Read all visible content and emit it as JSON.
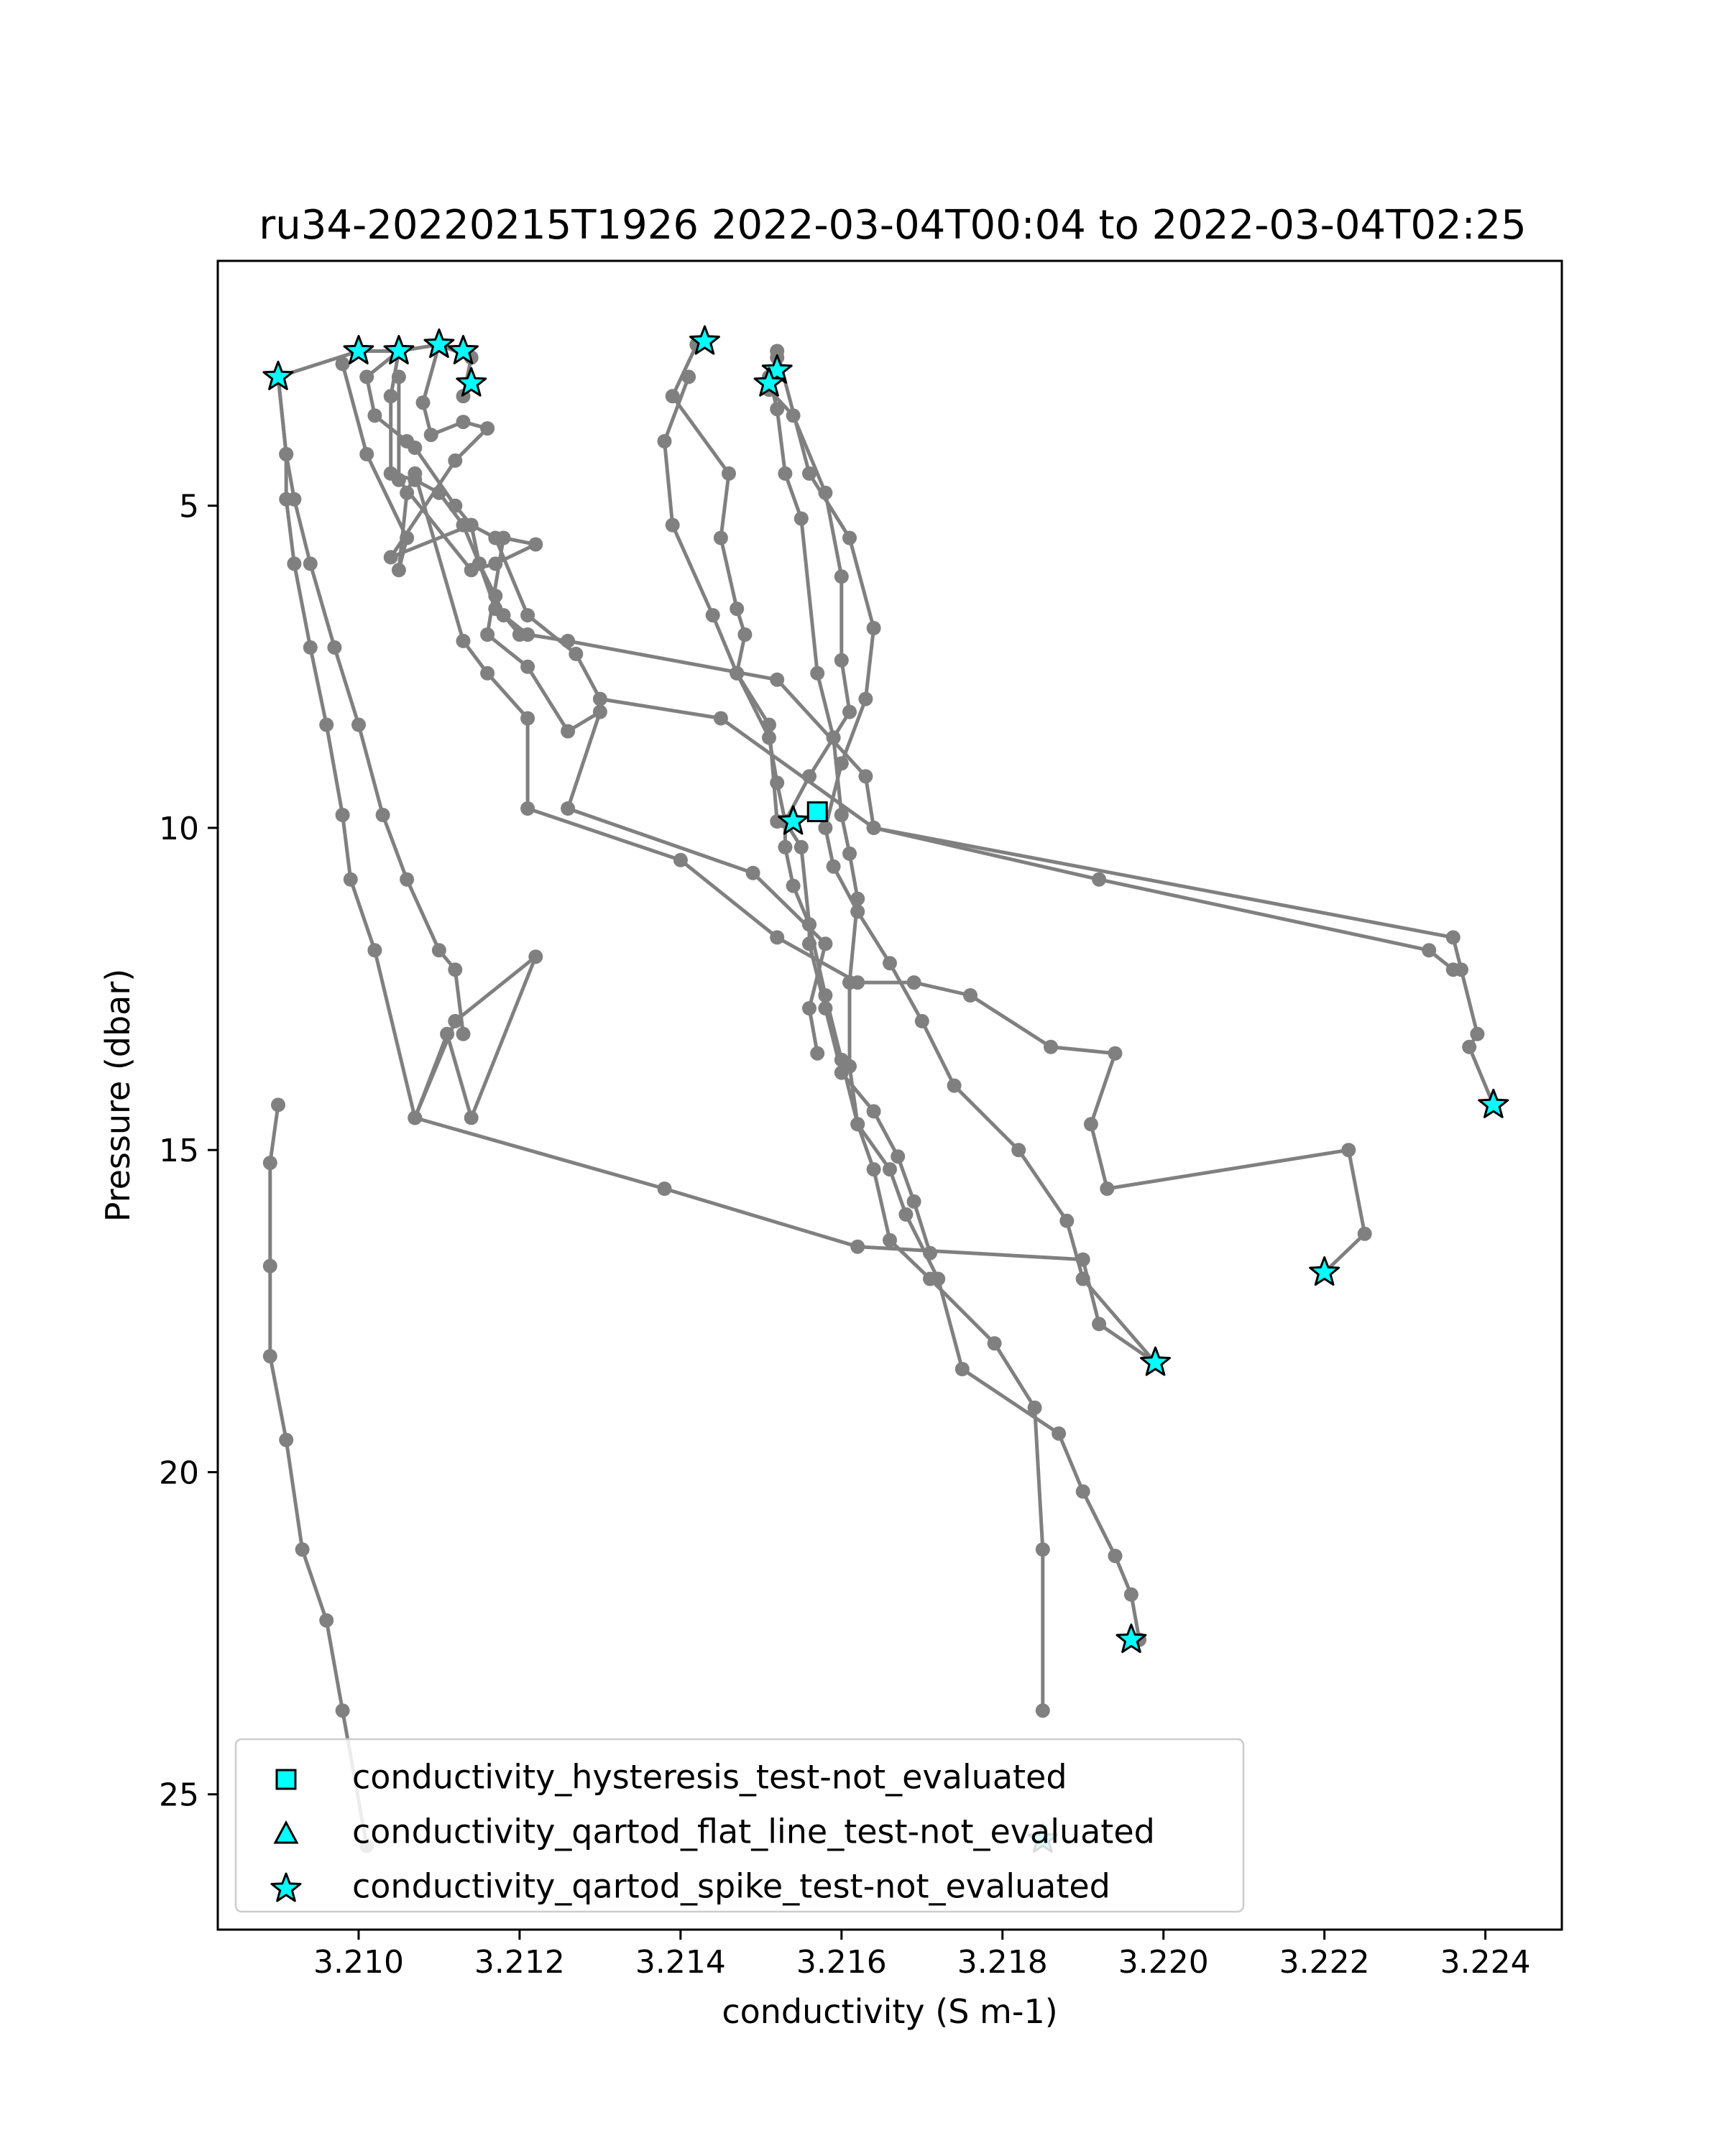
{
  "chart_data": {
    "type": "scatter",
    "title": "ru34-20220215T1926 2022-03-04T00:04 to 2022-03-04T02:25",
    "xlabel": "conductivity (S m-1)",
    "ylabel": "Pressure (dbar)",
    "xlim": [
      3.20825,
      3.22495
    ],
    "ylim": [
      27.1,
      1.2
    ],
    "y_inverted": true,
    "grid": false,
    "legend_position": "lower-left",
    "xticks": [
      3.21,
      3.212,
      3.214,
      3.216,
      3.218,
      3.22,
      3.222,
      3.224
    ],
    "xtick_labels": [
      "3.210",
      "3.212",
      "3.214",
      "3.216",
      "3.218",
      "3.220",
      "3.222",
      "3.224"
    ],
    "yticks": [
      5,
      10,
      15,
      20,
      25
    ],
    "ytick_labels": [
      "5",
      "10",
      "15",
      "20",
      "25"
    ],
    "line_color": "#808080",
    "marker_color": "#00ffff",
    "series": [
      {
        "x": [
          3.2101,
          3.2098,
          3.2096,
          3.2093,
          3.2091,
          3.2089,
          3.2089,
          3.2089,
          3.209
        ],
        "y": [
          25.8,
          23.7,
          22.3,
          21.2,
          19.5,
          18.2,
          16.8,
          15.2,
          14.3
        ]
      },
      {
        "x": [
          3.209,
          3.2091,
          3.2092,
          3.2094,
          3.2097,
          3.21,
          3.2103,
          3.2106,
          3.211,
          3.2112,
          3.2113
        ],
        "y": [
          3.0,
          4.2,
          4.9,
          5.9,
          7.2,
          8.4,
          9.8,
          10.8,
          11.9,
          12.2,
          13.2
        ]
      },
      {
        "x": [
          3.209,
          3.2091,
          3.2091,
          3.2092,
          3.2094,
          3.2096,
          3.2098,
          3.2099,
          3.2102,
          3.2107,
          3.2111,
          3.2114,
          3.2122,
          3.2112,
          3.2107,
          3.2138,
          3.2162,
          3.219,
          3.2192,
          3.2199
        ],
        "y": [
          3.0,
          4.2,
          4.9,
          5.9,
          7.2,
          8.4,
          9.8,
          10.8,
          11.9,
          14.5,
          13.2,
          14.5,
          12.0,
          13.0,
          14.5,
          15.6,
          16.5,
          16.7,
          17.7,
          18.3
        ]
      },
      {
        "x": [
          3.209,
          3.21,
          3.2105,
          3.211,
          3.2114,
          3.2113
        ],
        "y": [
          3.0,
          2.6,
          2.6,
          2.5,
          2.7,
          3.3
        ]
      },
      {
        "x": [
          3.2098,
          3.2101,
          3.2106,
          3.2105,
          3.2106,
          3.2107,
          3.2113,
          3.2116,
          3.2121,
          3.2121,
          3.214,
          3.2152,
          3.2162,
          3.2169,
          3.2176,
          3.2186,
          3.2194,
          3.2191,
          3.2193,
          3.2223,
          3.2225,
          3.222
        ],
        "y": [
          2.8,
          4.2,
          5.5,
          6.0,
          4.8,
          4.5,
          7.1,
          7.6,
          8.3,
          9.7,
          10.5,
          11.7,
          12.4,
          12.4,
          12.6,
          13.4,
          13.5,
          14.6,
          15.6,
          15.0,
          16.3,
          16.9
        ]
      },
      {
        "x": [
          3.2105,
          3.2105,
          3.2114,
          3.2117,
          3.2122,
          3.2118,
          3.2116,
          3.2121,
          3.2126,
          3.213,
          3.2126,
          3.2149,
          3.2158,
          3.2156,
          3.2157
        ],
        "y": [
          3.0,
          4.6,
          6.0,
          5.9,
          5.6,
          5.5,
          7.0,
          7.5,
          8.5,
          8.2,
          9.7,
          10.7,
          11.8,
          12.8,
          13.5
        ]
      },
      {
        "x": [
          3.2105,
          3.2104,
          3.2104,
          3.2107,
          3.211,
          3.2113,
          3.2115,
          3.2117,
          3.2121,
          3.2126,
          3.2152,
          3.2163,
          3.2164,
          3.2236,
          3.2237,
          3.2239,
          3.2238,
          3.2241
        ],
        "y": [
          2.6,
          3.3,
          4.5,
          4.6,
          4.8,
          5.3,
          5.9,
          6.6,
          7.0,
          7.1,
          7.7,
          9.2,
          10.0,
          11.7,
          12.2,
          13.2,
          13.4,
          14.3
        ]
      },
      {
        "x": [
          3.2105,
          3.2101,
          3.2102,
          3.2106,
          3.2107,
          3.2112,
          3.2114,
          3.2115,
          3.2117,
          3.2118,
          3.212
        ],
        "y": [
          2.6,
          3.0,
          3.6,
          4.0,
          4.1,
          5.0,
          5.3,
          5.9,
          6.4,
          6.7,
          7.0
        ]
      },
      {
        "x": [
          3.211,
          3.2108,
          3.2109,
          3.2113,
          3.2116,
          3.2112,
          3.2104,
          3.2114,
          3.2117,
          3.2121,
          3.2127,
          3.213,
          3.2145,
          3.2164,
          3.2192,
          3.2233,
          3.2236
        ],
        "y": [
          2.5,
          3.4,
          3.9,
          3.7,
          3.8,
          4.3,
          5.8,
          5.3,
          5.5,
          6.7,
          7.3,
          8.0,
          8.3,
          10.0,
          10.8,
          11.9,
          12.2
        ]
      },
      {
        "x": [
          3.2142,
          3.2139,
          3.2146,
          3.2145,
          3.2147,
          3.2148,
          3.2147,
          3.2151,
          3.2152,
          3.2153,
          3.2155,
          3.2156,
          3.2158,
          3.216,
          3.2162,
          3.2164,
          3.2166,
          3.2171,
          3.2179,
          3.2184,
          3.2185,
          3.2185
        ],
        "y": [
          2.5,
          3.3,
          4.5,
          5.5,
          6.6,
          7.0,
          7.6,
          8.6,
          9.3,
          9.9,
          10.3,
          11.5,
          12.6,
          13.6,
          14.6,
          15.3,
          16.4,
          17.0,
          18.0,
          19.0,
          21.2,
          23.7
        ]
      },
      {
        "x": [
          3.2151,
          3.2152,
          3.2153,
          3.2155,
          3.2157,
          3.2159,
          3.216,
          3.2161,
          3.2162,
          3.2161,
          3.2161,
          3.2162,
          3.2166,
          3.2168,
          3.2172,
          3.2175,
          3.2187,
          3.219,
          3.2194,
          3.2196,
          3.2197
        ],
        "y": [
          3.0,
          3.5,
          4.5,
          5.2,
          7.6,
          8.6,
          9.8,
          10.4,
          11.1,
          12.4,
          13.7,
          14.6,
          15.3,
          16.0,
          17.0,
          18.4,
          19.4,
          20.3,
          21.3,
          21.9,
          22.6
        ]
      },
      {
        "x": [
          3.2152,
          3.2151,
          3.2154,
          3.2158,
          3.216,
          3.216,
          3.2161,
          3.2159,
          3.2156,
          3.2153,
          3.2153,
          3.2154,
          3.2156,
          3.2156,
          3.2158,
          3.216,
          3.2164,
          3.2167,
          3.2169,
          3.2171
        ],
        "y": [
          2.7,
          3.2,
          3.6,
          4.8,
          6.1,
          7.4,
          8.2,
          8.6,
          9.2,
          9.9,
          10.3,
          10.9,
          11.5,
          11.8,
          12.8,
          13.8,
          14.4,
          15.1,
          15.8,
          16.6
        ]
      },
      {
        "x": [
          3.2152,
          3.2156,
          3.2161,
          3.2164,
          3.2163,
          3.216,
          3.2158,
          3.2159,
          3.2162,
          3.2166,
          3.217,
          3.2174,
          3.2182,
          3.2188,
          3.219,
          3.2199
        ],
        "y": [
          2.6,
          4.5,
          5.5,
          6.9,
          8.0,
          9.0,
          10.0,
          10.6,
          11.3,
          12.1,
          13.0,
          14.0,
          15.0,
          16.1,
          17.0,
          18.3
        ]
      },
      {
        "x": [
          3.2141,
          3.2138,
          3.2139,
          3.2144,
          3.2147,
          3.2151,
          3.2152
        ],
        "y": [
          3.0,
          4.0,
          5.3,
          6.7,
          7.6,
          8.4,
          9.9
        ]
      }
    ],
    "legend": [
      {
        "marker": "square",
        "label": "conductivity_hysteresis_test-not_evaluated"
      },
      {
        "marker": "triangle",
        "label": "conductivity_qartod_flat_line_test-not_evaluated"
      },
      {
        "marker": "star",
        "label": "conductivity_qartod_spike_test-not_evaluated"
      }
    ],
    "flag_points": {
      "square": [
        [
          3.2157,
          9.75
        ]
      ],
      "triangle": [],
      "star": [
        [
          3.209,
          3.0
        ],
        [
          3.21,
          2.6
        ],
        [
          3.2105,
          2.6
        ],
        [
          3.211,
          2.5
        ],
        [
          3.2113,
          2.6
        ],
        [
          3.2114,
          3.1
        ],
        [
          3.2143,
          2.45
        ],
        [
          3.2152,
          2.9
        ],
        [
          3.2151,
          3.1
        ],
        [
          3.2154,
          9.9
        ],
        [
          3.2241,
          14.3
        ],
        [
          3.222,
          16.9
        ],
        [
          3.2199,
          18.3
        ],
        [
          3.2196,
          22.6
        ],
        [
          3.2185,
          25.7
        ]
      ]
    }
  }
}
